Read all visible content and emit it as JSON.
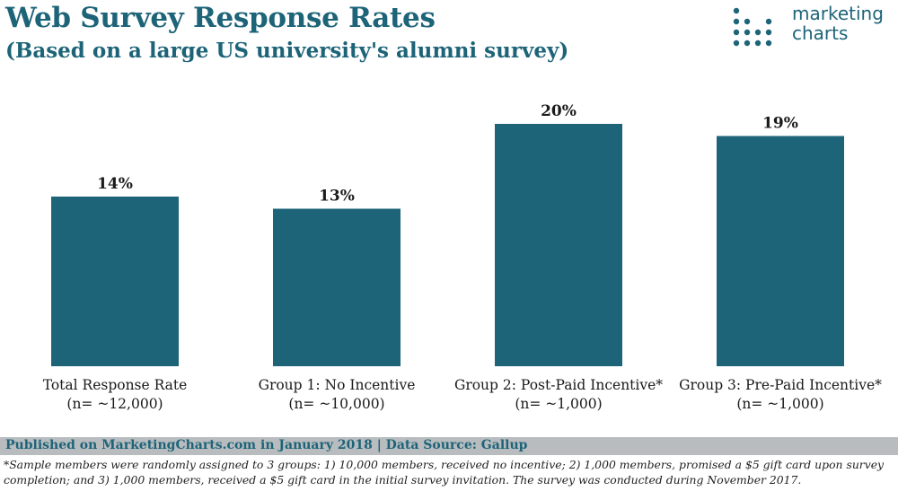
{
  "header": {
    "title": "Web Survey Response Rates",
    "subtitle": "(Based on a large US university's alumni survey)"
  },
  "logo": {
    "line1": "marketing",
    "line2": "charts",
    "color": "#1d6478"
  },
  "chart_data": {
    "type": "bar",
    "categories": [
      "Total Response Rate",
      "Group 1: No Incentive",
      "Group 2: Post-Paid Incentive*",
      "Group 3: Pre-Paid Incentive*"
    ],
    "sublabels": [
      "(n= ~12,000)",
      "(n= ~10,000)",
      "(n= ~1,000)",
      "(n= ~1,000)"
    ],
    "values": [
      14,
      13,
      20,
      19
    ],
    "value_labels": [
      "14%",
      "13%",
      "20%",
      "19%"
    ],
    "unit": "%",
    "ylim": [
      0,
      20
    ],
    "bar_color": "#1d6478",
    "grid": false
  },
  "footer": {
    "source": "Published on MarketingCharts.com in January 2018 | Data Source: Gallup",
    "note": "*Sample members were randomly assigned to 3 groups: 1) 10,000 members, received no incentive; 2) 1,000 members, promised a $5 gift card upon survey completion; and 3) 1,000 members, received a $5 gift card in the initial survey invitation. The survey was conducted during November 2017."
  }
}
